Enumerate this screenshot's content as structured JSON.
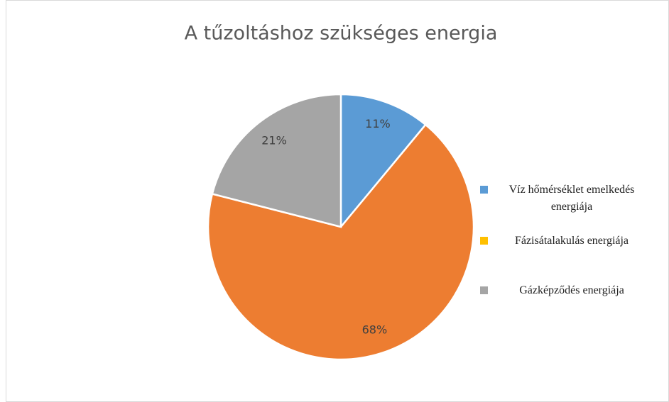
{
  "chart_data": {
    "type": "pie",
    "title": "A tűzoltáshoz szükséges energia",
    "categories": [
      "Víz hőmérséklet emelkedés energiája",
      "Fázisátalakulás energiája",
      "Gázképződés energiája"
    ],
    "values": [
      11,
      68,
      21
    ],
    "value_labels": [
      "11%",
      "68%",
      "21%"
    ],
    "colors": [
      "#5b9bd5",
      "#ed7d31",
      "#a5a5a5"
    ],
    "legend_colors": [
      "#5b9bd5",
      "#ffc000",
      "#a5a5a5"
    ],
    "legend": "right"
  }
}
